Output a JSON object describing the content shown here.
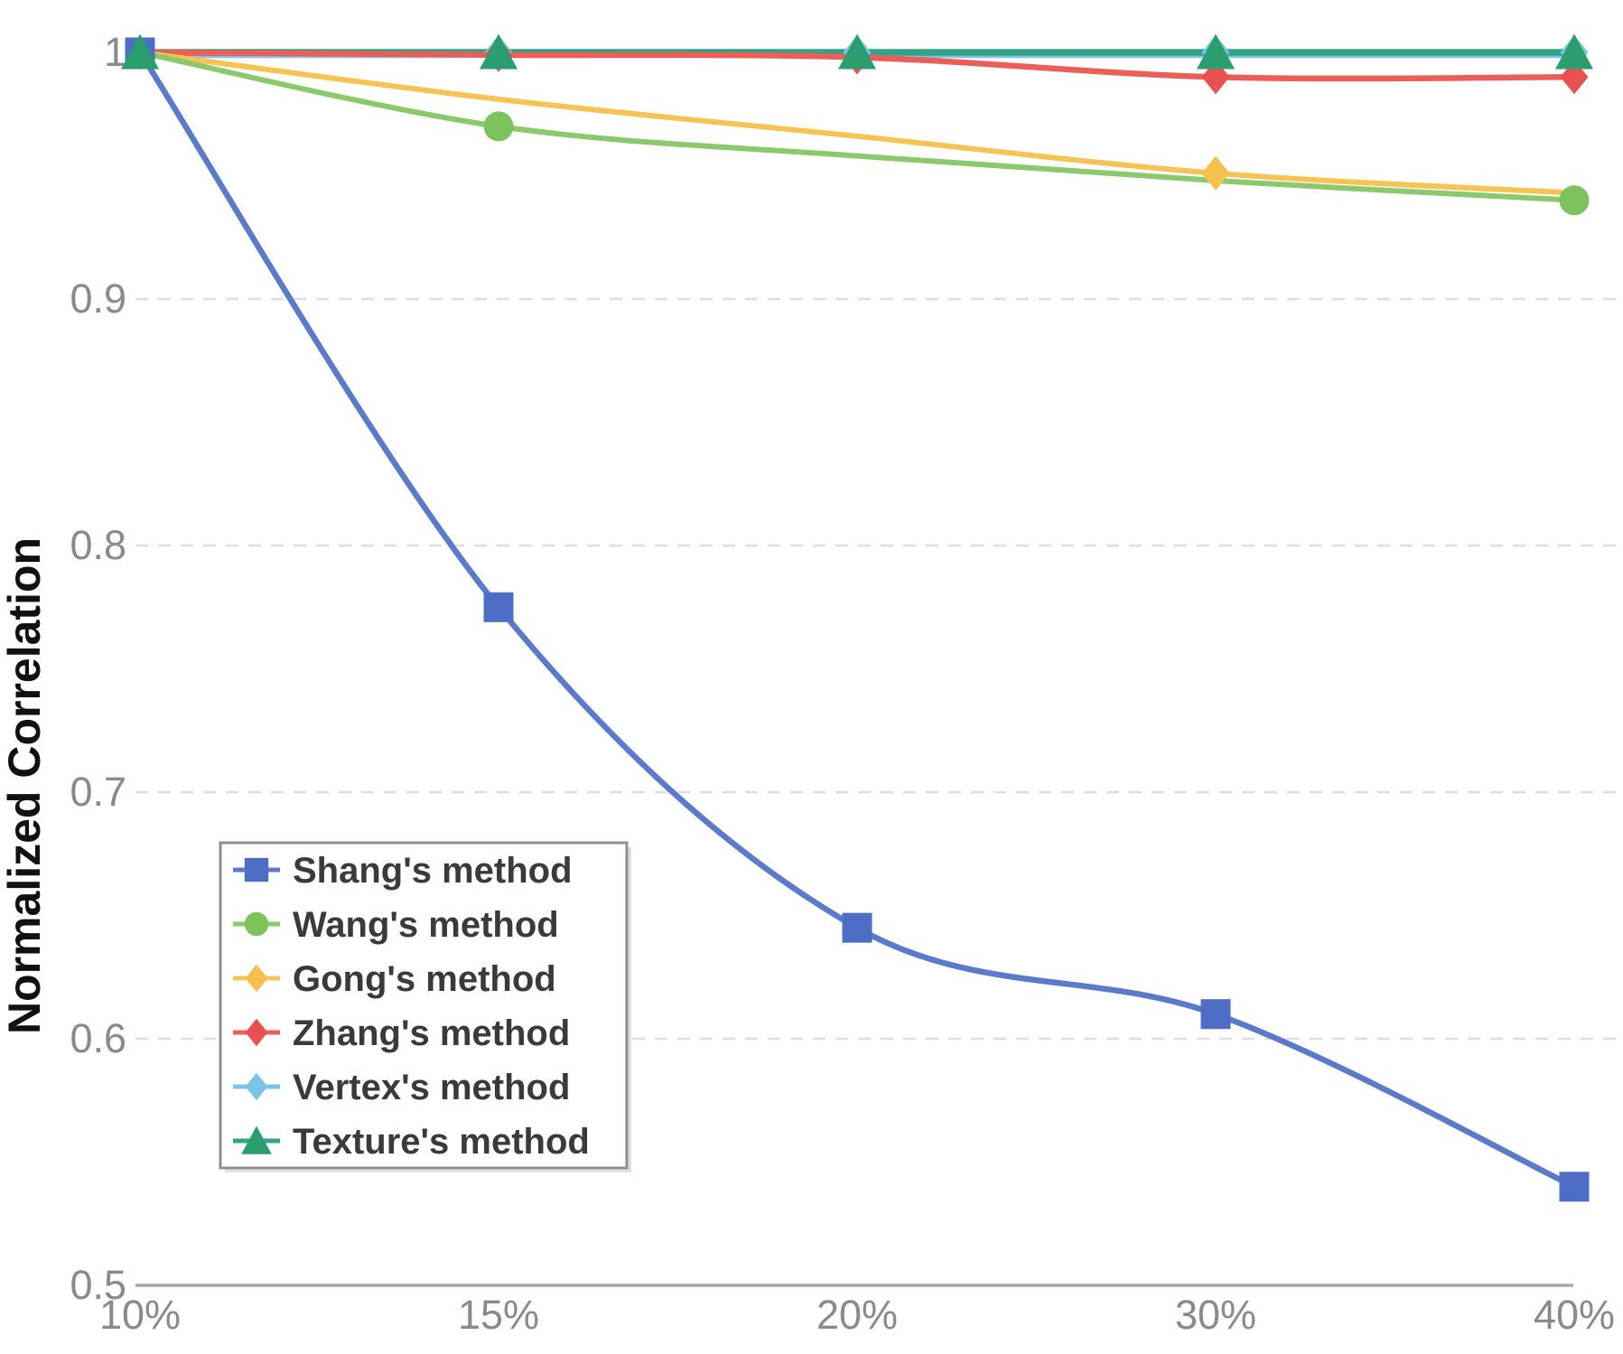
{
  "page": {
    "background_color": "#ffffff"
  },
  "style": {
    "tick_label_color": "#8a8a8a",
    "axis_line_color": "#a9a9a9",
    "grid_color": "#dedede",
    "legend_text_color": "#3a3a3a",
    "legend_border_color": "#8f8f8f",
    "legend_background": "#ffffff",
    "axis_title_color": "#111111"
  },
  "chart_data": {
    "type": "line",
    "title": "",
    "xlabel": "",
    "ylabel": "Normalized Correlation",
    "categories": [
      "10%",
      "15%",
      "20%",
      "30%",
      "40%"
    ],
    "x_tick_labels": [
      "10%",
      "15%",
      "20%",
      "30%",
      "40%"
    ],
    "y_ticks": [
      {
        "label": "1",
        "value": 1.0
      },
      {
        "label": "0.9",
        "value": 0.9
      },
      {
        "label": "0.8",
        "value": 0.8
      },
      {
        "label": "0.7",
        "value": 0.7
      },
      {
        "label": "0.6",
        "value": 0.6
      },
      {
        "label": "0.5",
        "value": 0.5
      }
    ],
    "ylim": [
      0.5,
      1.0
    ],
    "grid": "horizontal-dashed",
    "grid_at_values": [
      0.9,
      0.8,
      0.7,
      0.6
    ],
    "legend_position": "lower-left-inside",
    "series": [
      {
        "name": "Shang's method",
        "marker": "square",
        "color": "#4e6dc5",
        "line_color": "#5b7bca",
        "values": [
          1.0,
          0.775,
          0.645,
          0.61,
          0.54
        ],
        "marker_visible": [
          true,
          true,
          true,
          true,
          true
        ]
      },
      {
        "name": "Wang's method",
        "marker": "circle",
        "color": "#7cc35e",
        "line_color": "#8bc96c",
        "values": [
          1.0,
          0.97,
          0.958,
          0.948,
          0.94
        ],
        "marker_visible": [
          true,
          true,
          false,
          false,
          true
        ]
      },
      {
        "name": "Gong's method",
        "marker": "diamond",
        "color": "#f5c04b",
        "line_color": "#f6c454",
        "values": [
          1.0,
          0.981,
          0.966,
          0.951,
          0.943
        ],
        "marker_visible": [
          true,
          false,
          false,
          true,
          false
        ]
      },
      {
        "name": "Zhang's method",
        "marker": "diamond",
        "color": "#e8514f",
        "line_color": "#ec5f59",
        "values": [
          1.0,
          0.999,
          0.998,
          0.99,
          0.99
        ],
        "marker_visible": [
          true,
          true,
          true,
          true,
          true
        ]
      },
      {
        "name": "Vertex's method",
        "marker": "diamond",
        "color": "#79c4e8",
        "line_color": "#79c4e8",
        "values": [
          1.0,
          1.0,
          1.0,
          1.0,
          1.0
        ],
        "marker_visible": [
          true,
          true,
          true,
          true,
          true
        ]
      },
      {
        "name": "Texture's method",
        "marker": "triangle",
        "color": "#2a9e6f",
        "line_color": "#35a184",
        "values": [
          1.0,
          1.0,
          1.0,
          1.0,
          1.0
        ],
        "marker_visible": [
          true,
          true,
          true,
          true,
          true
        ]
      }
    ]
  }
}
